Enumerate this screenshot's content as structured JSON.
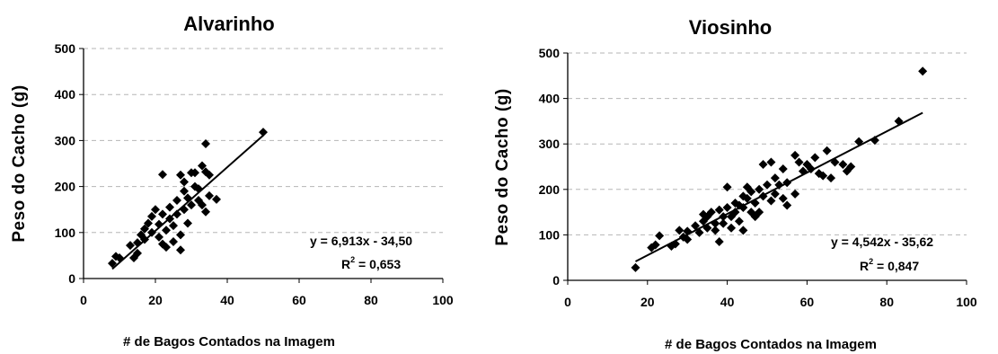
{
  "chart_data": [
    {
      "type": "scatter",
      "title": "Alvarinho",
      "xlabel": "# de Bagos Contados na Imagem",
      "ylabel": "Peso do Cacho (g)",
      "xlim": [
        0,
        100
      ],
      "ylim": [
        0,
        500
      ],
      "xticks": [
        "0",
        "20",
        "40",
        "60",
        "80",
        "100"
      ],
      "yticks": [
        "0",
        "100",
        "200",
        "300",
        "400",
        "500"
      ],
      "grid": "horizontal-dashed",
      "marker": "diamond",
      "trendline": {
        "slope": 6.913,
        "intercept": -34.5,
        "x_range": [
          8,
          50
        ]
      },
      "equation": "y = 6,913x - 34,50",
      "r2_prefix": "R",
      "r2_sup": "2",
      "r2_value": " = 0,653",
      "points": [
        [
          8,
          33
        ],
        [
          9,
          48
        ],
        [
          10,
          45
        ],
        [
          13,
          72
        ],
        [
          14,
          45
        ],
        [
          15,
          55
        ],
        [
          15,
          78
        ],
        [
          16,
          95
        ],
        [
          17,
          85
        ],
        [
          17,
          108
        ],
        [
          18,
          120
        ],
        [
          19,
          100
        ],
        [
          19,
          135
        ],
        [
          20,
          150
        ],
        [
          21,
          118
        ],
        [
          21,
          90
        ],
        [
          22,
          140
        ],
        [
          22,
          75
        ],
        [
          22,
          226
        ],
        [
          23,
          68
        ],
        [
          23,
          105
        ],
        [
          24,
          130
        ],
        [
          24,
          155
        ],
        [
          25,
          80
        ],
        [
          25,
          115
        ],
        [
          26,
          140
        ],
        [
          26,
          170
        ],
        [
          27,
          62
        ],
        [
          27,
          95
        ],
        [
          27,
          225
        ],
        [
          28,
          150
        ],
        [
          28,
          190
        ],
        [
          28,
          210
        ],
        [
          29,
          120
        ],
        [
          29,
          175
        ],
        [
          30,
          230
        ],
        [
          30,
          160
        ],
        [
          31,
          200
        ],
        [
          31,
          230
        ],
        [
          32,
          195
        ],
        [
          32,
          170
        ],
        [
          33,
          160
        ],
        [
          33,
          245
        ],
        [
          34,
          145
        ],
        [
          34,
          232
        ],
        [
          34,
          293
        ],
        [
          35,
          180
        ],
        [
          35,
          225
        ],
        [
          37,
          172
        ],
        [
          50,
          318
        ]
      ]
    },
    {
      "type": "scatter",
      "title": "Viosinho",
      "xlabel": "# de Bagos Contados na Imagem",
      "ylabel": "Peso do Cacho (g)",
      "xlim": [
        0,
        100
      ],
      "ylim": [
        0,
        500
      ],
      "xticks": [
        "0",
        "20",
        "40",
        "60",
        "80",
        "100"
      ],
      "yticks": [
        "0",
        "100",
        "200",
        "300",
        "400",
        "500"
      ],
      "grid": "horizontal-dashed",
      "marker": "diamond",
      "trendline": {
        "slope": 4.542,
        "intercept": -35.62,
        "x_range": [
          17,
          89
        ]
      },
      "equation": "y = 4,542x - 35,62",
      "r2_prefix": "R",
      "r2_sup": "2",
      "r2_value": " = 0,847",
      "points": [
        [
          17,
          28
        ],
        [
          21,
          72
        ],
        [
          22,
          78
        ],
        [
          23,
          98
        ],
        [
          26,
          75
        ],
        [
          27,
          80
        ],
        [
          28,
          110
        ],
        [
          29,
          95
        ],
        [
          30,
          108
        ],
        [
          30,
          90
        ],
        [
          32,
          120
        ],
        [
          33,
          105
        ],
        [
          34,
          130
        ],
        [
          34,
          145
        ],
        [
          35,
          115
        ],
        [
          35,
          140
        ],
        [
          36,
          150
        ],
        [
          37,
          125
        ],
        [
          37,
          110
        ],
        [
          38,
          85
        ],
        [
          38,
          155
        ],
        [
          39,
          140
        ],
        [
          39,
          125
        ],
        [
          40,
          205
        ],
        [
          40,
          160
        ],
        [
          41,
          140
        ],
        [
          41,
          115
        ],
        [
          42,
          150
        ],
        [
          42,
          170
        ],
        [
          43,
          165
        ],
        [
          43,
          130
        ],
        [
          44,
          160
        ],
        [
          44,
          110
        ],
        [
          44,
          185
        ],
        [
          45,
          180
        ],
        [
          45,
          205
        ],
        [
          46,
          195
        ],
        [
          46,
          150
        ],
        [
          47,
          170
        ],
        [
          47,
          140
        ],
        [
          48,
          200
        ],
        [
          48,
          150
        ],
        [
          49,
          255
        ],
        [
          49,
          185
        ],
        [
          50,
          210
        ],
        [
          51,
          175
        ],
        [
          51,
          260
        ],
        [
          52,
          190
        ],
        [
          52,
          225
        ],
        [
          53,
          210
        ],
        [
          54,
          245
        ],
        [
          54,
          180
        ],
        [
          55,
          165
        ],
        [
          55,
          215
        ],
        [
          57,
          275
        ],
        [
          57,
          190
        ],
        [
          58,
          260
        ],
        [
          59,
          240
        ],
        [
          60,
          255
        ],
        [
          61,
          245
        ],
        [
          62,
          270
        ],
        [
          63,
          235
        ],
        [
          64,
          230
        ],
        [
          65,
          285
        ],
        [
          66,
          225
        ],
        [
          67,
          260
        ],
        [
          69,
          255
        ],
        [
          70,
          240
        ],
        [
          71,
          250
        ],
        [
          73,
          305
        ],
        [
          77,
          308
        ],
        [
          83,
          350
        ],
        [
          89,
          460
        ]
      ]
    }
  ]
}
